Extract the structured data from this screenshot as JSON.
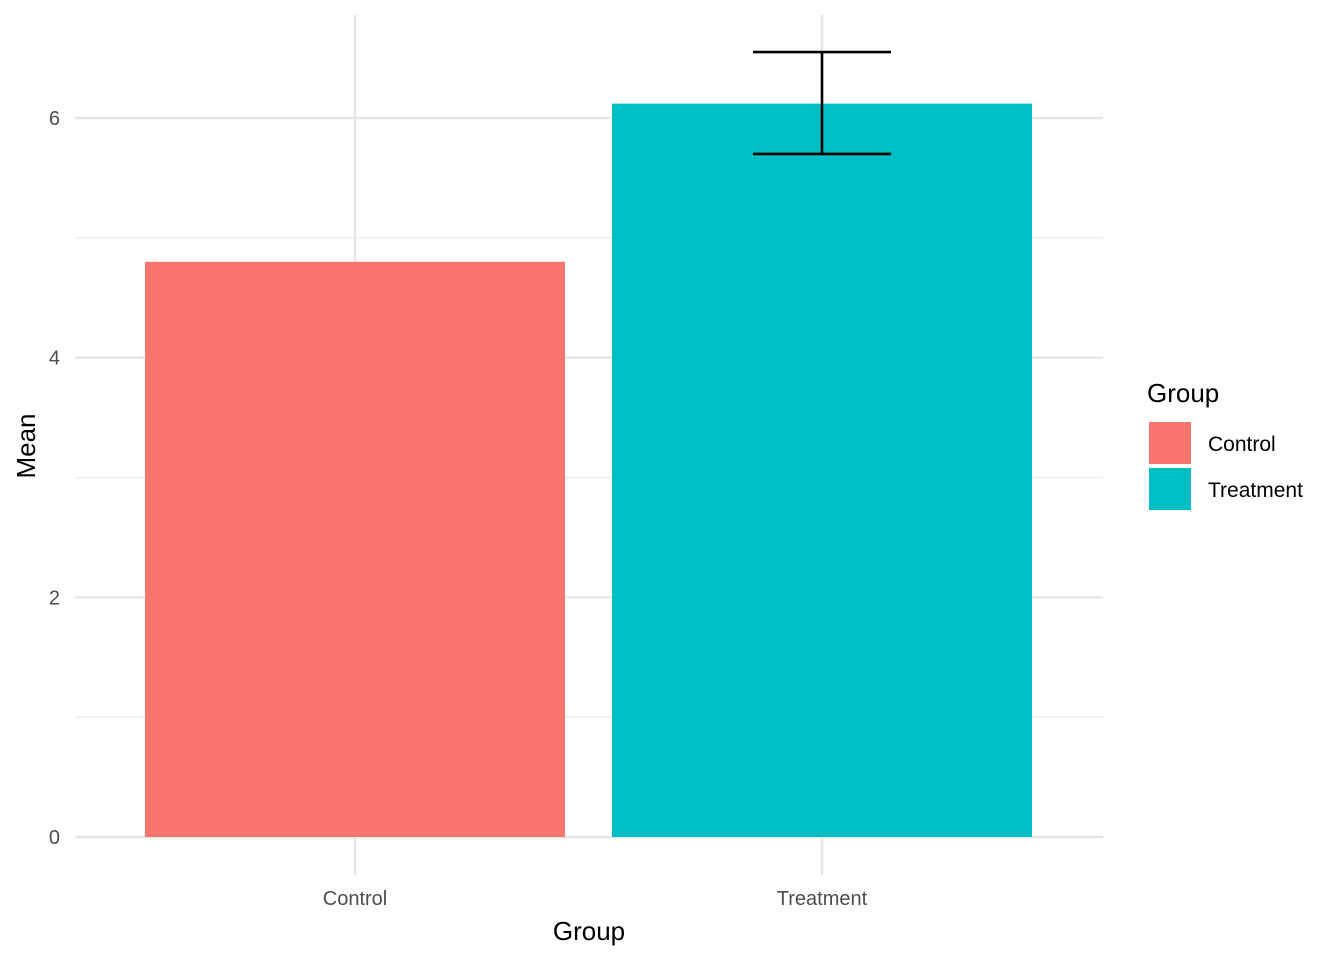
{
  "chart_data": {
    "type": "bar",
    "categories": [
      "Control",
      "Treatment"
    ],
    "values": [
      4.8,
      6.12
    ],
    "error_bars": [
      null,
      {
        "lower": 5.7,
        "upper": 6.55
      }
    ],
    "colors": [
      "#F8766D",
      "#00BFC4"
    ],
    "title": "",
    "xlabel": "Group",
    "ylabel": "Mean",
    "ylim": [
      0,
      6.85
    ],
    "yticks": [
      0,
      2,
      4,
      6
    ],
    "ytick_labels": [
      "0",
      "2",
      "4",
      "6"
    ],
    "grid": true,
    "legend": {
      "title": "Group",
      "placement": "right",
      "entries": [
        "Control",
        "Treatment"
      ]
    }
  }
}
